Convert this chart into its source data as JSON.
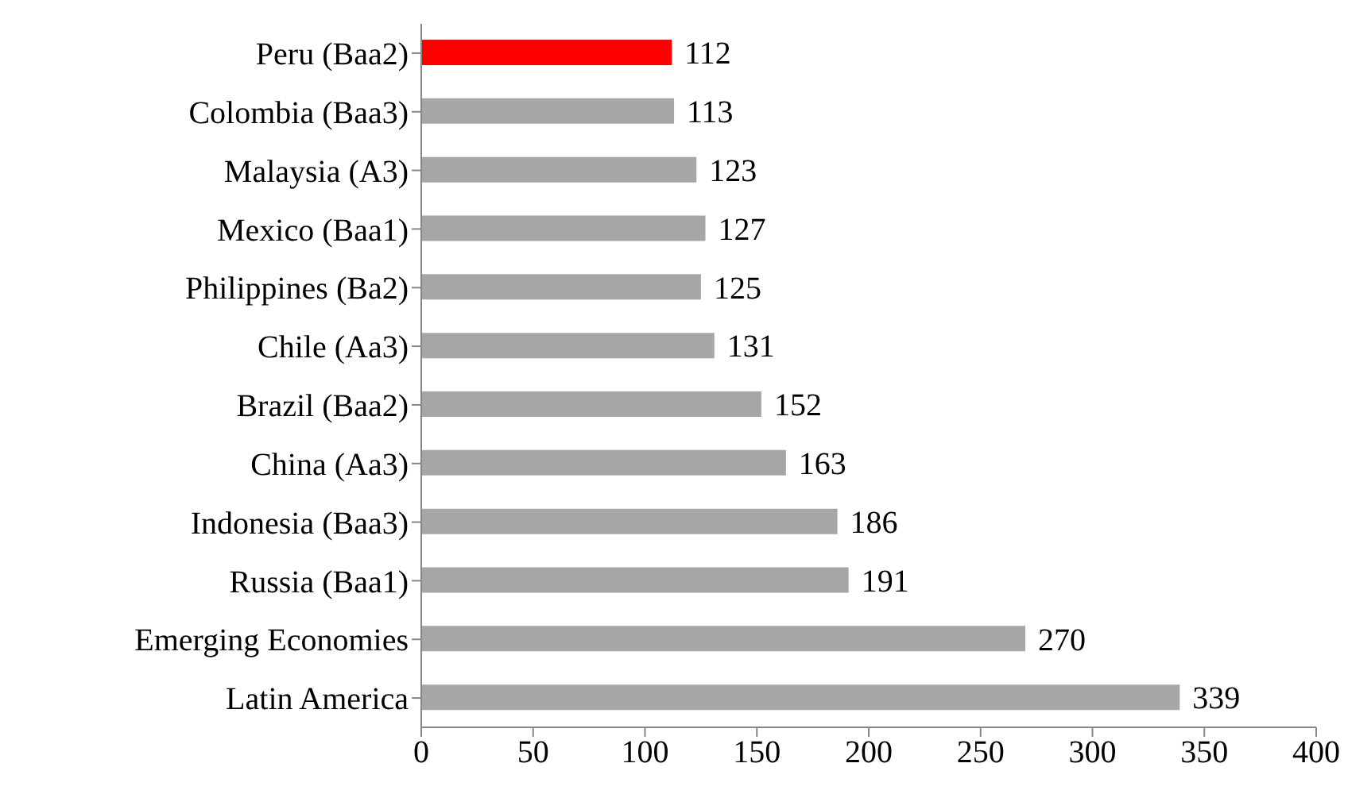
{
  "chart_data": {
    "type": "bar",
    "orientation": "horizontal",
    "categories": [
      "Peru (Baa2)",
      "Colombia (Baa3)",
      "Malaysia (A3)",
      "Mexico (Baa1)",
      "Philippines (Ba2)",
      "Chile (Aa3)",
      "Brazil (Baa2)",
      "China (Aa3)",
      "Indonesia (Baa3)",
      "Russia (Baa1)",
      "Emerging Economies",
      "Latin America"
    ],
    "values": [
      112,
      113,
      123,
      127,
      125,
      131,
      152,
      163,
      186,
      191,
      270,
      339
    ],
    "colors": [
      "#ff0000",
      "#a6a6a6",
      "#a6a6a6",
      "#a6a6a6",
      "#a6a6a6",
      "#a6a6a6",
      "#a6a6a6",
      "#a6a6a6",
      "#a6a6a6",
      "#a6a6a6",
      "#a6a6a6",
      "#a6a6a6"
    ],
    "xlim": [
      0,
      400
    ],
    "xticks": [
      0,
      50,
      100,
      150,
      200,
      250,
      300,
      350,
      400
    ],
    "data_labels": true,
    "grid": false
  }
}
